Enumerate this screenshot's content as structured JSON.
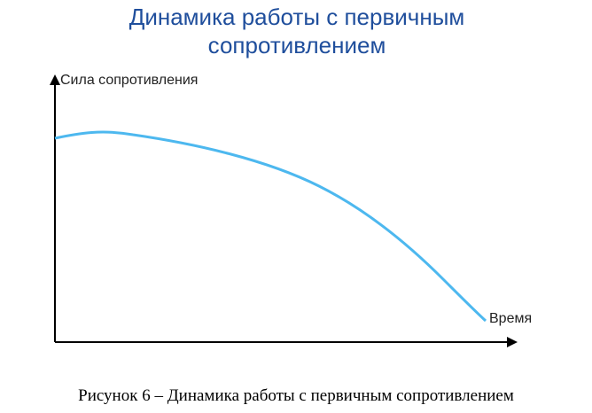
{
  "title": [
    "Динамика работы с первичным",
    "сопротивлением"
  ],
  "y_axis_label": "Сила сопротивления",
  "x_axis_label": "Время",
  "caption": "Рисунок 6 – Динамика работы с первичным сопротивлением"
}
